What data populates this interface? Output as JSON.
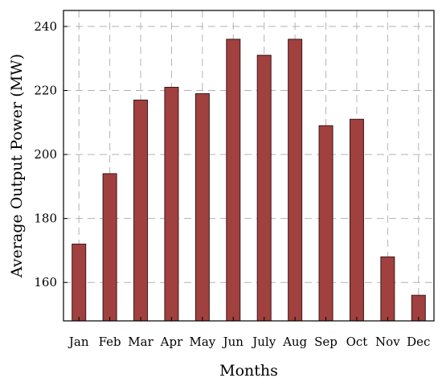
{
  "chart_data": {
    "type": "bar",
    "title": "",
    "xlabel": "Months",
    "ylabel": "Average Output Power (MW)",
    "categories": [
      "Jan",
      "Feb",
      "Mar",
      "Apr",
      "May",
      "Jun",
      "July",
      "Aug",
      "Sep",
      "Oct",
      "Nov",
      "Dec"
    ],
    "values": [
      172,
      194,
      217,
      221,
      219,
      236,
      231,
      236,
      209,
      211,
      168,
      156
    ],
    "ylim": [
      148,
      245
    ],
    "yticks": [
      160,
      180,
      200,
      220,
      240
    ],
    "grid": true,
    "bar_color": "#a0403f",
    "legend": "none"
  }
}
